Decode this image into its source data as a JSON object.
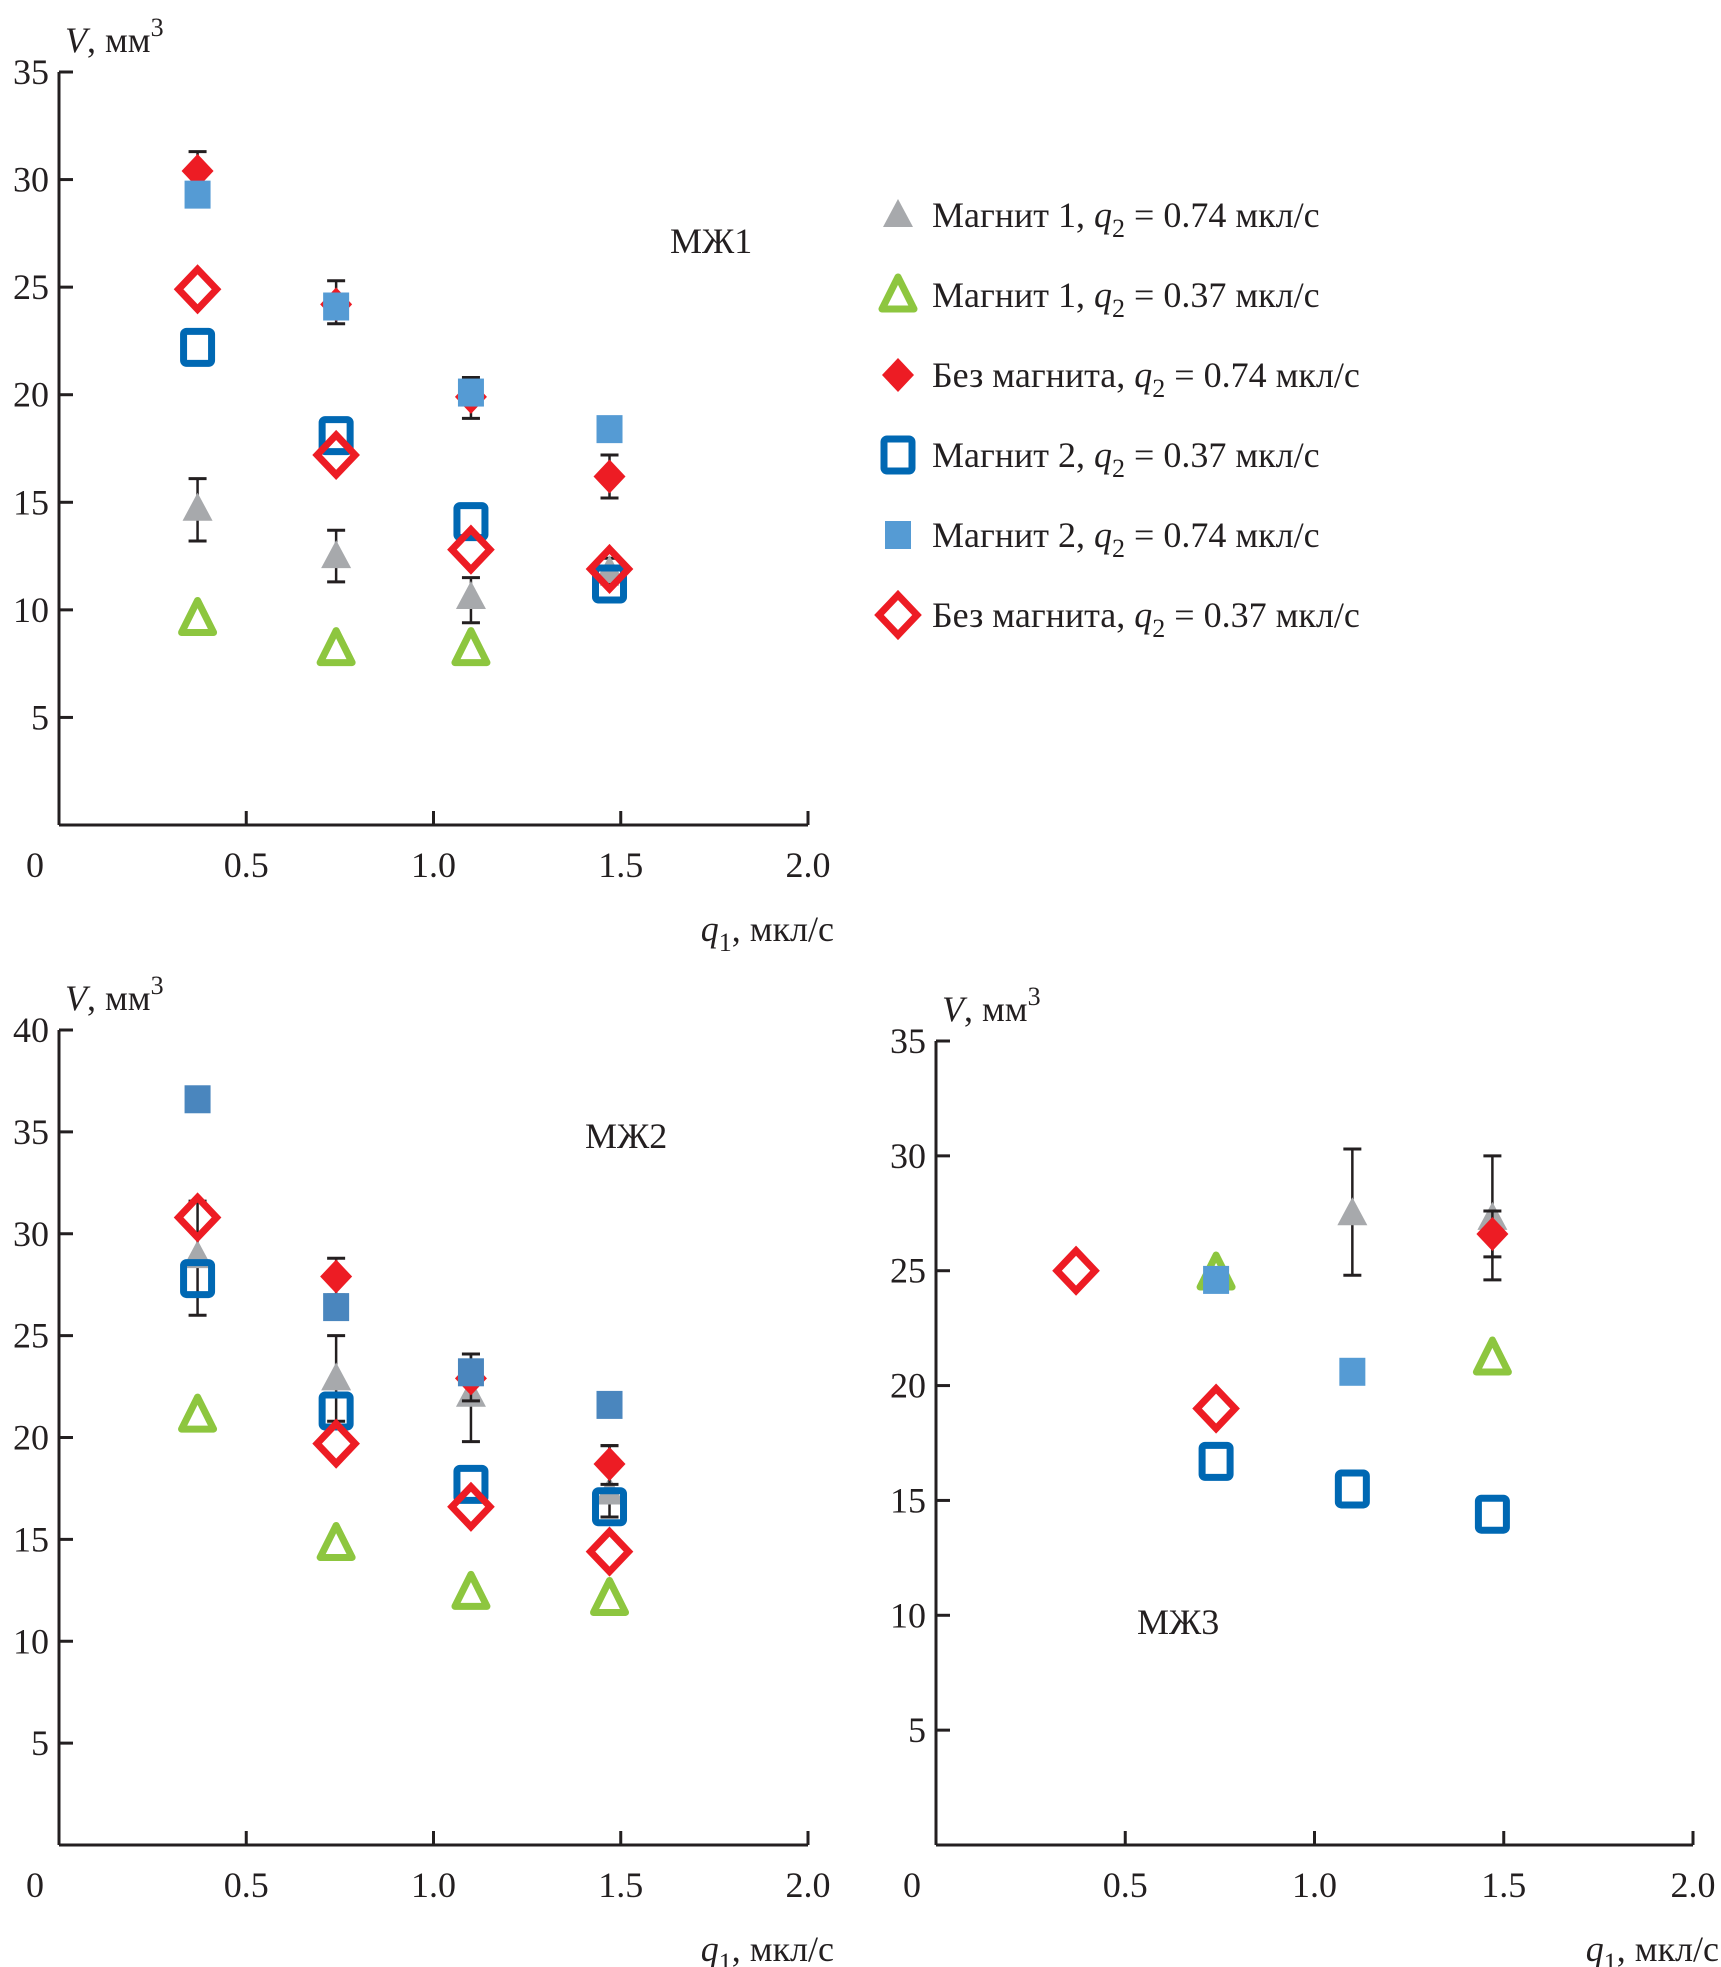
{
  "series_styles": {
    "m1_074": {
      "marker": "triangle-filled",
      "color": "#a7a9ac"
    },
    "m1_037": {
      "marker": "triangle-open",
      "color": "#8dc63f"
    },
    "nom_074": {
      "marker": "diamond-filled",
      "color": "#ed1c24"
    },
    "m2_037": {
      "marker": "square-open",
      "color": "#0068b3"
    },
    "m2_074": {
      "marker": "square-filled",
      "color": "#559bd4"
    },
    "nom_037": {
      "marker": "diamond-open",
      "color": "#ed1c24"
    }
  },
  "legend": {
    "position": "right of top chart",
    "entries": [
      {
        "key": "m1_074",
        "prefix": "Магнит 1, ",
        "var": "q",
        "sub": "2",
        "suffix": " = 0.74 мкл/с"
      },
      {
        "key": "m1_037",
        "prefix": "Магнит 1, ",
        "var": "q",
        "sub": "2",
        "suffix": " = 0.37 мкл/с"
      },
      {
        "key": "nom_074",
        "prefix": "Без магнита, ",
        "var": "q",
        "sub": "2",
        "suffix": " = 0.74 мкл/с"
      },
      {
        "key": "m2_037",
        "prefix": "Магнит 2, ",
        "var": "q",
        "sub": "2",
        "suffix": " = 0.37 мкл/с"
      },
      {
        "key": "m2_074",
        "prefix": "Магнит 2, ",
        "var": "q",
        "sub": "2",
        "suffix": " = 0.74 мкл/с"
      },
      {
        "key": "nom_037",
        "prefix": "Без магнита, ",
        "var": "q",
        "sub": "2",
        "suffix": " = 0.37 мкл/с"
      }
    ]
  },
  "chart_data": [
    {
      "type": "scatter",
      "title": "МЖ1",
      "ylabel": "V, мм3",
      "ylabel_parts": {
        "var": "V",
        "unit": ", мм",
        "sup": "3"
      },
      "xlabel": "q1, мкл/с",
      "xlabel_parts": {
        "var": "q",
        "sub": "1",
        "unit": ", мкл/с"
      },
      "xlim": [
        0,
        2.0
      ],
      "ylim": [
        0,
        35
      ],
      "xticks": [
        "0",
        "0.5",
        "1.0",
        "1.5",
        "2.0"
      ],
      "xtick_values": [
        0,
        0.5,
        1.0,
        1.5,
        2.0
      ],
      "yticks": [
        "5",
        "10",
        "15",
        "20",
        "25",
        "30",
        "35"
      ],
      "ytick_values": [
        5,
        10,
        15,
        20,
        25,
        30,
        35
      ],
      "grid": false,
      "series": [
        {
          "key": "m1_074",
          "name": "Магнит 1, q2 = 0.74 мкл/с",
          "points": [
            {
              "x": 0.37,
              "y": 14.7,
              "err": [
                13.2,
                16.1
              ]
            },
            {
              "x": 0.74,
              "y": 12.5,
              "err": [
                11.3,
                13.7
              ]
            },
            {
              "x": 1.1,
              "y": 10.6,
              "err": [
                9.4,
                11.5
              ]
            },
            {
              "x": 1.47,
              "y": 11.8,
              "err": [
                11.2,
                12.4
              ]
            }
          ]
        },
        {
          "key": "m1_037",
          "name": "Магнит 1, q2 = 0.37 мкл/с",
          "points": [
            {
              "x": 0.37,
              "y": 9.6
            },
            {
              "x": 0.74,
              "y": 8.2
            },
            {
              "x": 1.1,
              "y": 8.2
            }
          ]
        },
        {
          "key": "nom_074",
          "name": "Без магнита, q2 = 0.74 мкл/с",
          "points": [
            {
              "x": 0.37,
              "y": 30.4,
              "err": [
                29.5,
                31.3
              ]
            },
            {
              "x": 0.74,
              "y": 24.2,
              "err": [
                23.3,
                25.3
              ]
            },
            {
              "x": 1.1,
              "y": 19.9,
              "err": [
                18.9,
                20.8
              ]
            },
            {
              "x": 1.47,
              "y": 16.2,
              "err": [
                15.2,
                17.2
              ]
            }
          ]
        },
        {
          "key": "m2_037",
          "name": "Магнит 2, q2 = 0.37 мкл/с",
          "points": [
            {
              "x": 0.37,
              "y": 22.2
            },
            {
              "x": 0.74,
              "y": 18.1
            },
            {
              "x": 1.1,
              "y": 14.1
            },
            {
              "x": 1.47,
              "y": 11.2
            }
          ]
        },
        {
          "key": "m2_074",
          "name": "Магнит 2, q2 = 0.74 мкл/с",
          "points": [
            {
              "x": 0.37,
              "y": 29.3
            },
            {
              "x": 0.74,
              "y": 24.1
            },
            {
              "x": 1.1,
              "y": 20.1
            },
            {
              "x": 1.47,
              "y": 18.4
            }
          ]
        },
        {
          "key": "nom_037",
          "name": "Без магнита, q2 = 0.37 мкл/с",
          "points": [
            {
              "x": 0.37,
              "y": 24.9
            },
            {
              "x": 0.74,
              "y": 17.2
            },
            {
              "x": 1.1,
              "y": 12.8
            },
            {
              "x": 1.47,
              "y": 11.9
            }
          ]
        }
      ]
    },
    {
      "type": "scatter",
      "title": "МЖ2",
      "ylabel": "V, мм3",
      "ylabel_parts": {
        "var": "V",
        "unit": ", мм",
        "sup": "3"
      },
      "xlabel": "q1, мкл/с",
      "xlabel_parts": {
        "var": "q",
        "sub": "1",
        "unit": ", мкл/с"
      },
      "xlim": [
        0,
        2.0
      ],
      "ylim": [
        0,
        40
      ],
      "xticks": [
        "0",
        "0.5",
        "1.0",
        "1.5",
        "2.0"
      ],
      "xtick_values": [
        0,
        0.5,
        1.0,
        1.5,
        2.0
      ],
      "yticks": [
        "5",
        "10",
        "15",
        "20",
        "25",
        "30",
        "35",
        "40"
      ],
      "ytick_values": [
        5,
        10,
        15,
        20,
        25,
        30,
        35,
        40
      ],
      "grid": false,
      "series": [
        {
          "key": "m1_074",
          "name": "Магнит 1, q2 = 0.74 мкл/с",
          "points": [
            {
              "x": 0.37,
              "y": 28.9,
              "err": [
                26.0,
                31.6
              ]
            },
            {
              "x": 0.74,
              "y": 22.9,
              "err": [
                20.8,
                25.0
              ]
            },
            {
              "x": 1.1,
              "y": 22.1,
              "err": [
                19.8,
                24.1
              ]
            },
            {
              "x": 1.47,
              "y": 17.3,
              "err": [
                16.1,
                19.6
              ]
            }
          ]
        },
        {
          "key": "m1_037",
          "name": "Магнит 1, q2 = 0.37 мкл/с",
          "points": [
            {
              "x": 0.37,
              "y": 21.1
            },
            {
              "x": 0.74,
              "y": 14.8
            },
            {
              "x": 1.1,
              "y": 12.4
            },
            {
              "x": 1.47,
              "y": 12.1
            }
          ]
        },
        {
          "key": "nom_074",
          "name": "Без магнита, q2 = 0.74 мкл/с",
          "points": [
            {
              "x": 0.74,
              "y": 27.9,
              "err": [
                27.0,
                28.8
              ]
            },
            {
              "x": 1.1,
              "y": 22.9,
              "err": [
                21.8,
                24.1
              ]
            },
            {
              "x": 1.47,
              "y": 18.7,
              "err": [
                17.7,
                19.6
              ]
            }
          ]
        },
        {
          "key": "m2_037",
          "name": "Магнит 2, q2 = 0.37 мкл/с",
          "points": [
            {
              "x": 0.37,
              "y": 27.8
            },
            {
              "x": 0.74,
              "y": 21.3
            },
            {
              "x": 1.1,
              "y": 17.7
            },
            {
              "x": 1.47,
              "y": 16.6
            }
          ]
        },
        {
          "key": "m2_074",
          "name": "Магнит 2, q2 = 0.74 мкл/с",
          "points": [
            {
              "x": 0.37,
              "y": 36.6
            },
            {
              "x": 0.74,
              "y": 26.4
            },
            {
              "x": 1.1,
              "y": 23.2
            },
            {
              "x": 1.47,
              "y": 21.6
            }
          ]
        },
        {
          "key": "nom_037",
          "name": "Без магнита, q2 = 0.37 мкл/с",
          "points": [
            {
              "x": 0.37,
              "y": 30.8
            },
            {
              "x": 0.74,
              "y": 19.7
            },
            {
              "x": 1.1,
              "y": 16.6
            },
            {
              "x": 1.47,
              "y": 14.4
            }
          ]
        }
      ]
    },
    {
      "type": "scatter",
      "title": "МЖ3",
      "ylabel": "V, мм3",
      "ylabel_parts": {
        "var": "V",
        "unit": ", мм",
        "sup": "3"
      },
      "xlabel": "q1, мкл/с",
      "xlabel_parts": {
        "var": "q",
        "sub": "1",
        "unit": ", мкл/с"
      },
      "xlim": [
        0,
        2.0
      ],
      "ylim": [
        0,
        35
      ],
      "xticks": [
        "0",
        "0.5",
        "1.0",
        "1.5",
        "2.0"
      ],
      "xtick_values": [
        0,
        0.5,
        1.0,
        1.5,
        2.0
      ],
      "yticks": [
        "5",
        "10",
        "15",
        "20",
        "25",
        "30",
        "35"
      ],
      "ytick_values": [
        5,
        10,
        15,
        20,
        25,
        30,
        35
      ],
      "grid": false,
      "series": [
        {
          "key": "m1_074",
          "name": "Магнит 1, q2 = 0.74 мкл/с",
          "points": [
            {
              "x": 1.1,
              "y": 27.5,
              "err": [
                24.8,
                30.3
              ]
            },
            {
              "x": 1.47,
              "y": 27.3,
              "err": [
                24.6,
                30.0
              ]
            }
          ]
        },
        {
          "key": "m1_037",
          "name": "Магнит 1, q2 = 0.37 мкл/с",
          "points": [
            {
              "x": 0.74,
              "y": 24.9
            },
            {
              "x": 1.47,
              "y": 21.2
            }
          ]
        },
        {
          "key": "nom_074",
          "name": "Без магнита, q2 = 0.74 мкл/с",
          "points": [
            {
              "x": 1.47,
              "y": 26.6,
              "err": [
                25.6,
                27.6
              ]
            }
          ]
        },
        {
          "key": "m2_037",
          "name": "Магнит 2, q2 = 0.37 мкл/с",
          "points": [
            {
              "x": 0.74,
              "y": 16.7
            },
            {
              "x": 1.1,
              "y": 15.5
            },
            {
              "x": 1.47,
              "y": 14.4
            }
          ]
        },
        {
          "key": "m2_074",
          "name": "Магнит 2, q2 = 0.74 мкл/с",
          "points": [
            {
              "x": 0.74,
              "y": 24.6
            },
            {
              "x": 1.1,
              "y": 20.6
            }
          ]
        },
        {
          "key": "nom_037",
          "name": "Без магнита, q2 = 0.37 мкл/с",
          "points": [
            {
              "x": 0.37,
              "y": 25.0
            },
            {
              "x": 0.74,
              "y": 19.0
            }
          ]
        }
      ]
    }
  ]
}
